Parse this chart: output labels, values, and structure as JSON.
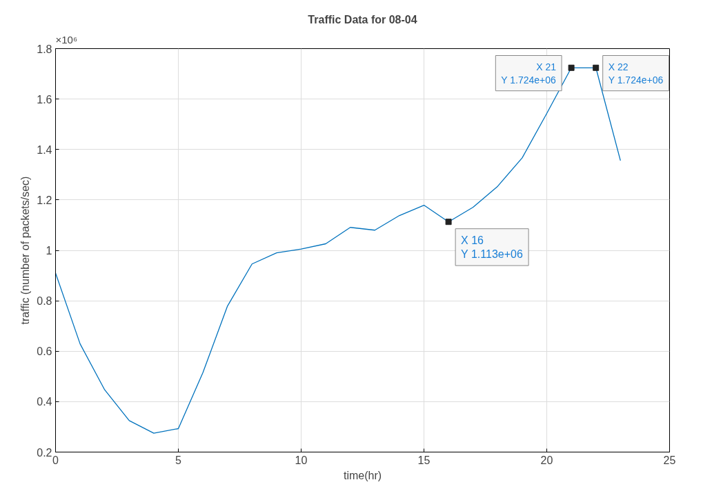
{
  "chart_data": {
    "type": "line",
    "title": "Traffic Data for 08-04",
    "xlabel": "time(hr)",
    "ylabel": "traffic (number of packets/sec)",
    "x": [
      0,
      1,
      2,
      3,
      4,
      5,
      6,
      7,
      8,
      9,
      10,
      11,
      12,
      13,
      14,
      15,
      16,
      17,
      18,
      19,
      20,
      21,
      22,
      23
    ],
    "series": [
      {
        "color": "#0072bd",
        "values": [
          0.91,
          0.629,
          0.447,
          0.325,
          0.275,
          0.293,
          0.515,
          0.779,
          0.946,
          0.99,
          1.005,
          1.026,
          1.091,
          1.08,
          1.138,
          1.179,
          1.113,
          1.171,
          1.254,
          1.367,
          1.543,
          1.724,
          1.724,
          1.356
        ]
      }
    ],
    "xlim": [
      0,
      25
    ],
    "xticks": [
      0,
      5,
      10,
      15,
      20,
      25
    ],
    "ylim": [
      0.2,
      1.8
    ],
    "yticks": [
      0.2,
      0.4,
      0.6,
      0.8,
      1,
      1.2,
      1.4,
      1.6,
      1.8
    ],
    "annotations": [
      "×10⁶",
      {
        "text": "X 21\nY 1.724e+06",
        "x": 21,
        "y": 1.724
      },
      {
        "text": "X 22\nY 1.724e+06",
        "x": 22,
        "y": 1.724
      },
      {
        "text": "X 16\nY 1.113e+06",
        "x": 16,
        "y": 1.113
      }
    ],
    "grid": true,
    "marker": "none",
    "line_style": "solid"
  }
}
